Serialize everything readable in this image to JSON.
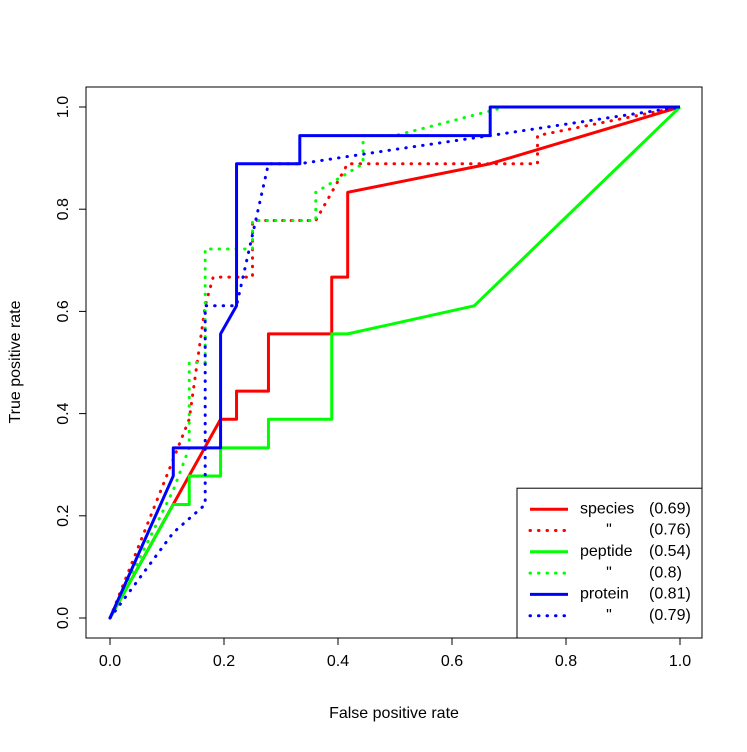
{
  "chart_data": {
    "type": "line",
    "x_label": "False positive rate",
    "y_label": "True positive rate",
    "xlim": [
      0,
      1
    ],
    "ylim": [
      0,
      1
    ],
    "xticks": [
      {
        "value": 0,
        "label": "0.0"
      },
      {
        "value": 0.2,
        "label": "0.2"
      },
      {
        "value": 0.4,
        "label": "0.4"
      },
      {
        "value": 0.6,
        "label": "0.6"
      },
      {
        "value": 0.8,
        "label": "0.8"
      },
      {
        "value": 1,
        "label": "1.0"
      }
    ],
    "yticks": [
      {
        "value": 0,
        "label": "0.0"
      },
      {
        "value": 0.2,
        "label": "0.2"
      },
      {
        "value": 0.4,
        "label": "0.4"
      },
      {
        "value": 0.6,
        "label": "0.6"
      },
      {
        "value": 0.8,
        "label": "0.8"
      },
      {
        "value": 1,
        "label": "1.0"
      }
    ],
    "legend_position": "bottom-right",
    "series": [
      {
        "name": "species",
        "auc_label": "(0.69)",
        "color": "#ff0000",
        "dash": "solid",
        "x": [
          0,
          0.194,
          0.222,
          0.222,
          0.278,
          0.278,
          0.389,
          0.389,
          0.417,
          0.417,
          0.667,
          1
        ],
        "values": [
          0,
          0.389,
          0.389,
          0.444,
          0.444,
          0.556,
          0.556,
          0.667,
          0.667,
          0.833,
          0.889,
          1
        ]
      },
      {
        "name": "\"",
        "auc_label": "(0.76)",
        "color": "#ff0000",
        "dash": "dotted",
        "x": [
          0,
          0.139,
          0.167,
          0.181,
          0.25,
          0.25,
          0.361,
          0.389,
          0.417,
          0.75,
          0.75,
          1
        ],
        "values": [
          0,
          0.389,
          0.611,
          0.667,
          0.667,
          0.778,
          0.778,
          0.833,
          0.889,
          0.889,
          0.944,
          1
        ]
      },
      {
        "name": "peptide",
        "auc_label": "(0.54)",
        "color": "#00ff00",
        "dash": "solid",
        "x": [
          0,
          0.111,
          0.139,
          0.139,
          0.194,
          0.194,
          0.278,
          0.278,
          0.389,
          0.389,
          0.417,
          0.639,
          1
        ],
        "values": [
          0,
          0.222,
          0.222,
          0.278,
          0.278,
          0.333,
          0.333,
          0.389,
          0.389,
          0.556,
          0.556,
          0.611,
          1
        ]
      },
      {
        "name": "\"",
        "auc_label": "(0.8)",
        "color": "#00ff00",
        "dash": "dotted",
        "x": [
          0,
          0.111,
          0.139,
          0.139,
          0.167,
          0.167,
          0.25,
          0.25,
          0.361,
          0.361,
          0.444,
          0.444,
          0.5,
          0.694,
          1
        ],
        "values": [
          0,
          0.25,
          0.333,
          0.5,
          0.5,
          0.722,
          0.722,
          0.778,
          0.778,
          0.833,
          0.889,
          0.944,
          0.944,
          1,
          1
        ]
      },
      {
        "name": "protein",
        "auc_label": "(0.81)",
        "color": "#0000ff",
        "dash": "solid",
        "x": [
          0,
          0.111,
          0.111,
          0.194,
          0.194,
          0.222,
          0.222,
          0.333,
          0.333,
          0.667,
          0.667,
          1
        ],
        "values": [
          0,
          0.278,
          0.333,
          0.333,
          0.556,
          0.611,
          0.889,
          0.889,
          0.944,
          0.944,
          1,
          1
        ]
      },
      {
        "name": "\"",
        "auc_label": "(0.79)",
        "color": "#0000ff",
        "dash": "dotted",
        "x": [
          0,
          0.111,
          0.167,
          0.167,
          0.222,
          0.278,
          0.333,
          0.5,
          0.667,
          1
        ],
        "values": [
          0,
          0.167,
          0.222,
          0.611,
          0.611,
          0.889,
          0.889,
          0.917,
          0.944,
          1
        ]
      }
    ]
  }
}
